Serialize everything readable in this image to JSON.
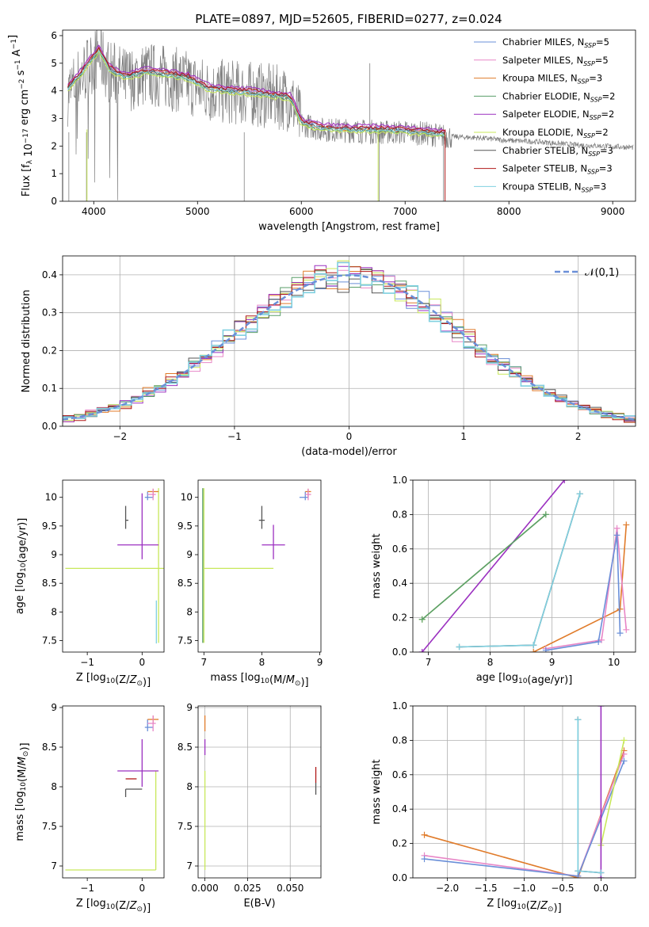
{
  "figure": {
    "title": "PLATE=0897, MJD=52605, FIBERID=0277, z=0.024"
  },
  "colors": {
    "chabrier_miles": "#6a8fd8",
    "salpeter_miles": "#e887c7",
    "kroupa_miles": "#e07b2a",
    "chabrier_elodie": "#5a9e6a",
    "salpeter_elodie": "#9b30c0",
    "kroupa_elodie": "#c8e85a",
    "chabrier_stelib": "#555555",
    "salpeter_stelib": "#b01818",
    "kroupa_stelib": "#7fd0e0",
    "gaussian": "#6a8fd8",
    "data": "#808080",
    "grid": "#b0b0b0"
  },
  "chart_data": [
    {
      "id": "spectrum",
      "type": "line",
      "xlabel": "wavelength [Angstrom, rest frame]",
      "ylabel": "Flux [f_λ 10^-17 erg cm^-2 s^-1 A^-1]",
      "xlim": [
        3700,
        9220
      ],
      "ylim": [
        0,
        6.2
      ],
      "xticks": [
        4000,
        5000,
        6000,
        7000,
        8000,
        9000
      ],
      "yticks": [
        0,
        1,
        2,
        3,
        4,
        5,
        6
      ],
      "grid": false,
      "legend_position": "upper right",
      "series": [
        {
          "name": "Chabrier MILES, N_SSP=5",
          "key": "chabrier_miles"
        },
        {
          "name": "Salpeter MILES, N_SSP=5",
          "key": "salpeter_miles"
        },
        {
          "name": "Kroupa MILES, N_SSP=3",
          "key": "kroupa_miles"
        },
        {
          "name": "Chabrier ELODIE, N_SSP=2",
          "key": "chabrier_elodie"
        },
        {
          "name": "Salpeter ELODIE, N_SSP=2",
          "key": "salpeter_elodie"
        },
        {
          "name": "Kroupa ELODIE, N_SSP=2",
          "key": "kroupa_elodie"
        },
        {
          "name": "Chabrier STELIB, N_SSP=3",
          "key": "chabrier_stelib"
        },
        {
          "name": "Salpeter STELIB, N_SSP=3",
          "key": "salpeter_stelib"
        },
        {
          "name": "Kroupa STELIB, N_SSP=3",
          "key": "kroupa_stelib"
        }
      ],
      "data_continuum": {
        "x": [
          3750,
          3850,
          3950,
          4050,
          4150,
          4300,
          4500,
          4700,
          4900,
          5100,
          5300,
          5500,
          5700,
          5900,
          6000,
          6200,
          6500,
          6800,
          7000,
          7200,
          7400,
          7700,
          8000,
          8300,
          8600,
          8900,
          9200
        ],
        "y": [
          3.9,
          4.4,
          4.9,
          5.3,
          4.7,
          4.4,
          4.6,
          4.5,
          4.3,
          4.0,
          3.95,
          3.9,
          3.8,
          3.7,
          2.8,
          2.6,
          2.55,
          2.5,
          2.5,
          2.45,
          2.35,
          2.3,
          2.2,
          2.15,
          2.05,
          2.0,
          1.95
        ]
      },
      "model_continuum": {
        "x": [
          3750,
          3850,
          3950,
          4050,
          4150,
          4300,
          4500,
          4700,
          4900,
          5100,
          5300,
          5500,
          5700,
          5900,
          6000,
          6200,
          6500,
          6750,
          7000,
          7200,
          7400
        ],
        "y": [
          4.1,
          4.5,
          5.0,
          5.5,
          4.8,
          4.5,
          4.7,
          4.6,
          4.5,
          4.1,
          4.0,
          3.95,
          3.85,
          3.75,
          2.85,
          2.65,
          2.6,
          2.6,
          2.55,
          2.5,
          2.45
        ]
      }
    },
    {
      "id": "residuals",
      "type": "line",
      "xlabel": "(data-model)/error",
      "ylabel": "Normed distribution",
      "xlim": [
        -2.5,
        2.5
      ],
      "ylim": [
        0,
        0.45
      ],
      "xticks": [
        -2,
        -1,
        0,
        1,
        2
      ],
      "yticks": [
        0.0,
        0.1,
        0.2,
        0.3,
        0.4
      ],
      "grid": true,
      "legend": "N(0,1)",
      "gaussian": {
        "mean": 0,
        "sigma": 1
      }
    },
    {
      "id": "age_vs_Z",
      "type": "scatter",
      "xlabel": "Z [log10(Z/Z⊙)]",
      "ylabel": "age [log10(age/yr)]",
      "xlim": [
        -1.45,
        0.4
      ],
      "ylim": [
        7.3,
        10.3
      ],
      "xticks": [
        -1,
        0
      ],
      "yticks": [
        7.5,
        8.0,
        8.5,
        9.0,
        9.5,
        10.0
      ],
      "grid": false,
      "errorbars": [
        {
          "key": "kroupa_elodie",
          "x": 0.3,
          "y": 8.76,
          "xerr": [
            1.7,
            0.1
          ],
          "yerr": [
            1.3,
            1.4
          ]
        },
        {
          "key": "salpeter_elodie",
          "x": 0.0,
          "y": 9.17,
          "xerr": [
            0.45,
            0.3
          ],
          "yerr": [
            0.25,
            0.9
          ]
        },
        {
          "key": "chabrier_stelib",
          "x": -0.3,
          "y": 9.6,
          "xerr": [
            0,
            0.05
          ],
          "yerr": [
            0.15,
            0.25
          ]
        },
        {
          "key": "chabrier_miles",
          "x": 0.1,
          "y": 10.0,
          "xerr": [
            0.05,
            0.1
          ],
          "yerr": [
            0.05,
            0.1
          ]
        },
        {
          "key": "kroupa_miles",
          "x": 0.2,
          "y": 10.1,
          "xerr": [
            0.1,
            0.1
          ],
          "yerr": [
            0.1,
            0.05
          ]
        },
        {
          "key": "salpeter_miles",
          "x": 0.2,
          "y": 10.05,
          "xerr": [
            0.1,
            0.05
          ],
          "yerr": [
            0.1,
            0.1
          ]
        },
        {
          "key": "kroupa_stelib",
          "x": 0.26,
          "y": 7.8,
          "xerr": [
            0,
            0
          ],
          "yerr": [
            0.35,
            0.4
          ]
        }
      ]
    },
    {
      "id": "age_vs_mass",
      "type": "scatter",
      "xlabel": "mass [log10(M/M⊙)]",
      "ylabel": "",
      "xlim": [
        6.9,
        9.02
      ],
      "ylim": [
        7.3,
        10.3
      ],
      "xticks": [
        7,
        8,
        9
      ],
      "yticks": [
        7.5,
        8.0,
        8.5,
        9.0,
        9.5,
        10.0
      ],
      "grid": false,
      "errorbars": [
        {
          "key": "kroupa_elodie",
          "x": 7.0,
          "y": 8.76,
          "xerr": [
            0,
            1.2
          ],
          "yerr": [
            1.3,
            1.4
          ]
        },
        {
          "key": "chabrier_elodie",
          "x": 6.98,
          "y": 8.76,
          "xerr": [
            0,
            0
          ],
          "yerr": [
            1.3,
            1.4
          ]
        },
        {
          "key": "salpeter_elodie",
          "x": 8.2,
          "y": 9.17,
          "xerr": [
            0.2,
            0.2
          ],
          "yerr": [
            0.25,
            0.35
          ]
        },
        {
          "key": "chabrier_stelib",
          "x": 8.0,
          "y": 9.6,
          "xerr": [
            0.05,
            0.05
          ],
          "yerr": [
            0.15,
            0.25
          ]
        },
        {
          "key": "chabrier_miles",
          "x": 8.75,
          "y": 10.0,
          "xerr": [
            0.1,
            0.05
          ],
          "yerr": [
            0.05,
            0.1
          ]
        },
        {
          "key": "kroupa_miles",
          "x": 8.8,
          "y": 10.1,
          "xerr": [
            0.05,
            0.05
          ],
          "yerr": [
            0.1,
            0.05
          ]
        },
        {
          "key": "salpeter_miles",
          "x": 8.8,
          "y": 10.05,
          "xerr": [
            0.05,
            0.05
          ],
          "yerr": [
            0.1,
            0.1
          ]
        }
      ]
    },
    {
      "id": "mass_weight_vs_age",
      "type": "line",
      "xlabel": "age [log10(age/yr)]",
      "ylabel": "mass weight",
      "xlim": [
        6.75,
        10.35
      ],
      "ylim": [
        0,
        1
      ],
      "xticks": [
        7,
        8,
        9,
        10
      ],
      "yticks": [
        0.0,
        0.2,
        0.4,
        0.6,
        0.8,
        1.0
      ],
      "grid": true,
      "series": [
        {
          "key": "kroupa_elodie",
          "x": [
            6.9,
            8.9
          ],
          "y": [
            0.19,
            0.8
          ]
        },
        {
          "key": "salpeter_elodie",
          "x": [
            6.9,
            9.2
          ],
          "y": [
            0.0,
            1.0
          ]
        },
        {
          "key": "chabrier_elodie",
          "x": [
            6.9,
            8.9
          ],
          "y": [
            0.19,
            0.8
          ]
        },
        {
          "key": "chabrier_stelib",
          "x": [
            7.5,
            8.7,
            9.45
          ],
          "y": [
            0.03,
            0.04,
            0.92
          ]
        },
        {
          "key": "kroupa_stelib",
          "x": [
            7.5,
            8.7,
            9.45
          ],
          "y": [
            0.03,
            0.04,
            0.92
          ]
        },
        {
          "key": "kroupa_miles",
          "x": [
            8.7,
            10.1,
            10.2
          ],
          "y": [
            0.0,
            0.25,
            0.74
          ]
        },
        {
          "key": "salpeter_miles",
          "x": [
            8.9,
            9.8,
            10.05,
            10.2
          ],
          "y": [
            0.02,
            0.07,
            0.72,
            0.13
          ]
        },
        {
          "key": "chabrier_miles",
          "x": [
            8.9,
            9.75,
            10.05,
            10.1
          ],
          "y": [
            0.01,
            0.06,
            0.68,
            0.11
          ]
        }
      ]
    },
    {
      "id": "mass_vs_Z",
      "type": "scatter",
      "xlabel": "Z [log10(Z/Z⊙)]",
      "ylabel": "mass [log10(M/M⊙)]",
      "xlim": [
        -1.45,
        0.4
      ],
      "ylim": [
        6.85,
        9.02
      ],
      "xticks": [
        -1,
        0
      ],
      "yticks": [
        7.0,
        7.5,
        8.0,
        8.5,
        9.0
      ],
      "grid": false,
      "errorbars": [
        {
          "key": "kroupa_elodie",
          "x": 0.25,
          "y": 6.95,
          "xerr": [
            1.65,
            0
          ],
          "yerr": [
            0,
            1.25
          ]
        },
        {
          "key": "salpeter_elodie",
          "x": 0.0,
          "y": 8.2,
          "xerr": [
            0.45,
            0.3
          ],
          "yerr": [
            0.2,
            0.4
          ]
        },
        {
          "key": "chabrier_stelib",
          "x": -0.3,
          "y": 7.97,
          "xerr": [
            0,
            0.3
          ],
          "yerr": [
            0.1,
            0
          ]
        },
        {
          "key": "salpeter_stelib",
          "x": -0.3,
          "y": 8.1,
          "xerr": [
            0,
            0.2
          ],
          "yerr": [
            0,
            0
          ]
        },
        {
          "key": "chabrier_miles",
          "x": 0.1,
          "y": 8.75,
          "xerr": [
            0.05,
            0.1
          ],
          "yerr": [
            0.05,
            0.1
          ]
        },
        {
          "key": "kroupa_miles",
          "x": 0.2,
          "y": 8.85,
          "xerr": [
            0.1,
            0.1
          ],
          "yerr": [
            0.05,
            0.05
          ]
        },
        {
          "key": "salpeter_miles",
          "x": 0.2,
          "y": 8.8,
          "xerr": [
            0.1,
            0.05
          ],
          "yerr": [
            0.1,
            0.1
          ]
        }
      ]
    },
    {
      "id": "mass_vs_ebv",
      "type": "scatter",
      "xlabel": "E(B-V)",
      "ylabel": "",
      "xlim": [
        -0.004,
        0.068
      ],
      "ylim": [
        6.85,
        9.02
      ],
      "xticks": [
        0.0,
        0.025,
        0.05
      ],
      "xticklabels": [
        "0.000",
        "0.025",
        "0.050"
      ],
      "yticks": [
        7.0,
        7.5,
        8.0,
        8.5,
        9.0
      ],
      "grid": true,
      "errorbars": [
        {
          "key": "kroupa_elodie",
          "x": 0.0,
          "y": 7.6,
          "xerr": [
            0,
            0
          ],
          "yerr": [
            0.65,
            0.6
          ]
        },
        {
          "key": "kroupa_miles",
          "x": 0.0,
          "y": 8.8,
          "xerr": [
            0,
            0
          ],
          "yerr": [
            0.1,
            0.1
          ]
        },
        {
          "key": "salpeter_elodie",
          "x": 0.0,
          "y": 8.5,
          "xerr": [
            0,
            0
          ],
          "yerr": [
            0.1,
            0.1
          ]
        },
        {
          "key": "salpeter_stelib",
          "x": 0.065,
          "y": 8.15,
          "xerr": [
            0,
            0
          ],
          "yerr": [
            0.1,
            0.1
          ]
        },
        {
          "key": "chabrier_stelib",
          "x": 0.065,
          "y": 8.0,
          "xerr": [
            0,
            0
          ],
          "yerr": [
            0.1,
            0.05
          ]
        }
      ]
    },
    {
      "id": "mass_weight_vs_Z",
      "type": "line",
      "xlabel": "Z [log10(Z/Z⊙)]",
      "ylabel": "mass weight",
      "xlim": [
        -2.45,
        0.45
      ],
      "ylim": [
        0,
        1
      ],
      "xticks": [
        -2.0,
        -1.5,
        -1.0,
        -0.5,
        0.0
      ],
      "xticklabels": [
        "−2.0",
        "−1.5",
        "−1.0",
        "−0.5",
        "0.0"
      ],
      "yticks": [
        0.0,
        0.2,
        0.4,
        0.6,
        0.8,
        1.0
      ],
      "grid": true,
      "series": [
        {
          "key": "kroupa_miles",
          "x": [
            -2.3,
            -0.3,
            0.3
          ],
          "y": [
            0.25,
            0.0,
            0.74
          ]
        },
        {
          "key": "salpeter_miles",
          "x": [
            -2.3,
            -0.3,
            0.3
          ],
          "y": [
            0.13,
            0.01,
            0.72
          ]
        },
        {
          "key": "chabrier_miles",
          "x": [
            -2.3,
            -0.3,
            0.3
          ],
          "y": [
            0.11,
            0.01,
            0.68
          ]
        },
        {
          "key": "kroupa_elodie",
          "x": [
            0.0,
            0.3
          ],
          "y": [
            0.19,
            0.8
          ]
        },
        {
          "key": "salpeter_elodie",
          "x": [
            0.0,
            0.0
          ],
          "y": [
            0.0,
            1.0
          ]
        },
        {
          "key": "chabrier_stelib",
          "x": [
            -0.3,
            -0.3,
            0.0
          ],
          "y": [
            0.92,
            0.04,
            0.03
          ]
        },
        {
          "key": "kroupa_stelib",
          "x": [
            -0.3,
            -0.3,
            0.0
          ],
          "y": [
            0.92,
            0.04,
            0.03
          ]
        }
      ]
    }
  ]
}
